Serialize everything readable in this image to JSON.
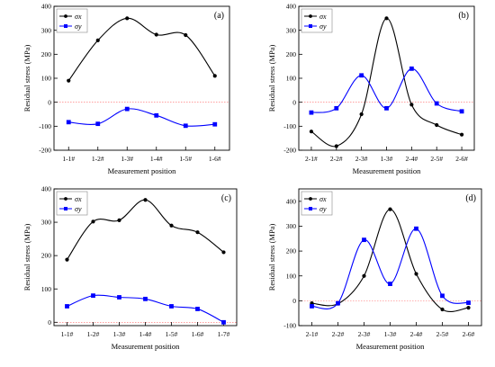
{
  "colors": {
    "sigma_x": "#000000",
    "sigma_y": "#0000ff",
    "zero_line": "#ff6666",
    "legend_border": "#888888",
    "background": "#ffffff"
  },
  "chart_data": [
    {
      "type": "line",
      "panel_label": "(a)",
      "xlabel": "Measurement position",
      "ylabel": "Residual stress (MPa)",
      "categories": [
        "1-1#",
        "1-2#",
        "1-3#",
        "1-4#",
        "1-5#",
        "1-6#"
      ],
      "ylim": [
        -200,
        400
      ],
      "yticks": [
        -200,
        -100,
        0,
        100,
        200,
        300,
        400
      ],
      "zero_line": true,
      "legend_position": "top-left",
      "series": [
        {
          "name": "σx",
          "color": "#000000",
          "marker": "circle",
          "values": [
            90,
            258,
            350,
            282,
            280,
            110
          ]
        },
        {
          "name": "σy",
          "color": "#0000ff",
          "marker": "square",
          "values": [
            -83,
            -90,
            -28,
            -55,
            -98,
            -92
          ]
        }
      ]
    },
    {
      "type": "line",
      "panel_label": "(b)",
      "xlabel": "Measurement position",
      "ylabel": "Residual stress (MPa)",
      "categories": [
        "2-1#",
        "2-2#",
        "2-3#",
        "1-3#",
        "2-4#",
        "2-5#",
        "2-6#"
      ],
      "ylim": [
        -200,
        400
      ],
      "yticks": [
        -200,
        -100,
        0,
        100,
        200,
        300,
        400
      ],
      "zero_line": true,
      "legend_position": "top-left",
      "series": [
        {
          "name": "σx",
          "color": "#000000",
          "marker": "circle",
          "values": [
            -122,
            -183,
            -50,
            350,
            -10,
            -95,
            -135
          ]
        },
        {
          "name": "σy",
          "color": "#0000ff",
          "marker": "square",
          "values": [
            -43,
            -25,
            112,
            -25,
            140,
            -5,
            -38
          ]
        }
      ]
    },
    {
      "type": "line",
      "panel_label": "(c)",
      "xlabel": "Measurement position",
      "ylabel": "Residual stress (MPa)",
      "categories": [
        "1-1#",
        "1-2#",
        "1-3#",
        "1-4#",
        "1-5#",
        "1-6#",
        "1-7#"
      ],
      "ylim": [
        -10,
        400
      ],
      "yticks": [
        0,
        100,
        200,
        300,
        400
      ],
      "zero_line": true,
      "legend_position": "top-left",
      "series": [
        {
          "name": "σx",
          "color": "#000000",
          "marker": "circle",
          "values": [
            188,
            302,
            306,
            367,
            290,
            270,
            210
          ]
        },
        {
          "name": "σy",
          "color": "#0000ff",
          "marker": "square",
          "values": [
            48,
            80,
            75,
            70,
            48,
            40,
            0
          ]
        }
      ]
    },
    {
      "type": "line",
      "panel_label": "(d)",
      "xlabel": "Measurement position",
      "ylabel": "Residual stress (MPa)",
      "categories": [
        "2-1#",
        "2-2#",
        "2-3#",
        "1-3#",
        "2-4#",
        "2-5#",
        "2-6#"
      ],
      "ylim": [
        -100,
        450
      ],
      "yticks": [
        -100,
        0,
        100,
        200,
        300,
        400
      ],
      "zero_line": true,
      "legend_position": "top-left",
      "series": [
        {
          "name": "σx",
          "color": "#000000",
          "marker": "circle",
          "values": [
            -10,
            -12,
            100,
            368,
            108,
            -35,
            -28
          ]
        },
        {
          "name": "σy",
          "color": "#0000ff",
          "marker": "square",
          "values": [
            -22,
            -10,
            245,
            68,
            290,
            20,
            -8
          ]
        }
      ]
    }
  ]
}
